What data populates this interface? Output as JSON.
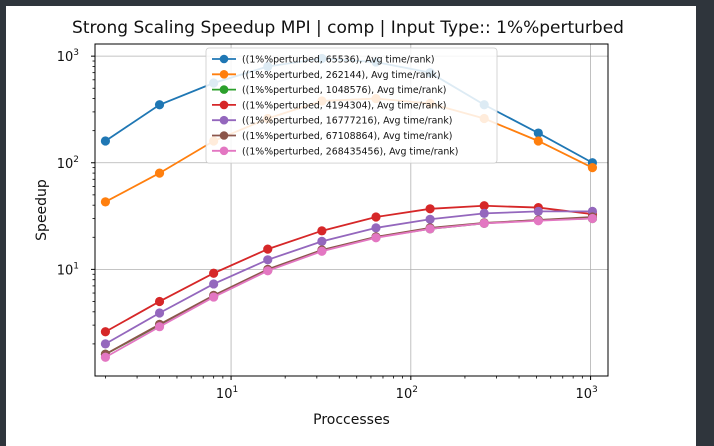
{
  "chart_data": {
    "type": "line",
    "title": "Strong Scaling Speedup MPI | comp | Input Type:: 1%%perturbed",
    "xlabel": "Proccesses",
    "ylabel": "Speedup",
    "xscale": "log",
    "yscale": "log",
    "xlim": [
      1.75,
      1250
    ],
    "ylim": [
      1.0,
      1300
    ],
    "grid": true,
    "legend_position": "top-center",
    "x_ticks": [
      {
        "value": 10,
        "label": "10",
        "exp": "1"
      },
      {
        "value": 100,
        "label": "10",
        "exp": "2"
      },
      {
        "value": 1000,
        "label": "10",
        "exp": "3"
      }
    ],
    "y_ticks": [
      {
        "value": 10,
        "label": "10",
        "exp": "1"
      },
      {
        "value": 100,
        "label": "10",
        "exp": "2"
      },
      {
        "value": 1000,
        "label": "10",
        "exp": "3"
      }
    ],
    "x": [
      2,
      4,
      8,
      16,
      32,
      64,
      128,
      256,
      512,
      1024
    ],
    "series": [
      {
        "name": "((1%%perturbed, 65536), Avg time/rank)",
        "color": "#1f77b4",
        "values": [
          160,
          350,
          560,
          800,
          950,
          880,
          700,
          350,
          190,
          100
        ]
      },
      {
        "name": "((1%%perturbed, 262144), Avg time/rank)",
        "color": "#ff7f0e",
        "values": [
          43,
          80,
          160,
          260,
          380,
          400,
          360,
          260,
          160,
          90
        ]
      },
      {
        "name": "((1%%perturbed, 1048576), Avg time/rank)",
        "color": "#2ca02c",
        "values": [
          1.6,
          3.0,
          5.6,
          9.8,
          15,
          20,
          24,
          27,
          29,
          30
        ]
      },
      {
        "name": "((1%%perturbed, 4194304), Avg time/rank)",
        "color": "#d62728",
        "values": [
          2.6,
          5.0,
          9.2,
          15.5,
          23,
          31,
          37,
          39.5,
          38,
          33
        ]
      },
      {
        "name": "((1%%perturbed, 16777216), Avg time/rank)",
        "color": "#9467bd",
        "values": [
          2.0,
          3.9,
          7.3,
          12.3,
          18.3,
          24.5,
          29.5,
          33.5,
          35,
          35
        ]
      },
      {
        "name": "((1%%perturbed, 67108864), Avg time/rank)",
        "color": "#8c564b",
        "values": [
          1.6,
          3.05,
          5.7,
          10,
          15.2,
          20.2,
          24.5,
          27.3,
          29,
          31
        ]
      },
      {
        "name": "((1%%perturbed, 268435456), Avg time/rank)",
        "color": "#e377c2",
        "values": [
          1.5,
          2.9,
          5.5,
          9.7,
          14.8,
          19.8,
          24,
          27,
          28.6,
          30
        ]
      }
    ]
  }
}
